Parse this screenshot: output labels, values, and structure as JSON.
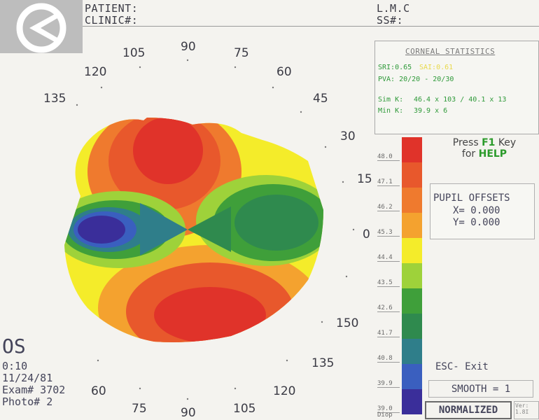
{
  "header": {
    "patient_label": "PATIENT:",
    "clinic_label": "CLINIC#:",
    "patient_name": "L.M.C",
    "ss_label": "SS#:"
  },
  "axis_labels": {
    "a90_top": "90",
    "a105_top": "105",
    "a75_top": "75",
    "a120_top": "120",
    "a60_top": "60",
    "a135_top": "135",
    "a45": "45",
    "a30": "30",
    "a15": "15",
    "a0": "0",
    "a150": "150",
    "a135_bot": "135",
    "a120_bot": "120",
    "a105_bot": "105",
    "a90_bot": "90",
    "a75_bot": "75",
    "a60_bot": "60"
  },
  "stats": {
    "title": "CORNEAL STATISTICS",
    "sri": "SRI:0.65",
    "sai": "SAI:0.61",
    "pva": "PVA: 20/20 - 20/30",
    "simk_label": "Sim K:",
    "simk_value": "46.4 x 103 / 40.1 x 13",
    "mink_label": "Min K:",
    "mink_value": "39.9 x 6"
  },
  "scale": {
    "labels": [
      "48.0",
      "47.1",
      "46.2",
      "45.3",
      "44.4",
      "43.5",
      "42.6",
      "41.7",
      "40.8",
      "39.9",
      "39.0"
    ],
    "colors": [
      "#e0332a",
      "#e8582c",
      "#ef7a2e",
      "#f4a22f",
      "#f4ec2a",
      "#9ed23a",
      "#3f9f3a",
      "#2f8a4e",
      "#2f7e8a",
      "#3a5fbf",
      "#3a2e9a"
    ],
    "unit": "Diop"
  },
  "help": {
    "line1_pre": "Press ",
    "line1_key": "F1",
    "line1_post": " Key",
    "line2_pre": "for ",
    "line2_key": "HELP"
  },
  "pupil": {
    "title": "PUPIL OFFSETS",
    "x": "X=  0.000",
    "y": "Y=  0.000"
  },
  "controls": {
    "esc": "ESC- Exit",
    "smooth": "SMOOTH = 1",
    "normalized": "NORMALIZED",
    "version": "Ver: 1.8I"
  },
  "footer": {
    "eye": "OS",
    "time": "0:10",
    "date": "11/24/81",
    "exam": "Exam# 3702",
    "photo": "Photo# 2"
  },
  "colors": {
    "red": "#e0332a",
    "green": "#3f9f3a",
    "blue": "#3a2e9a"
  }
}
